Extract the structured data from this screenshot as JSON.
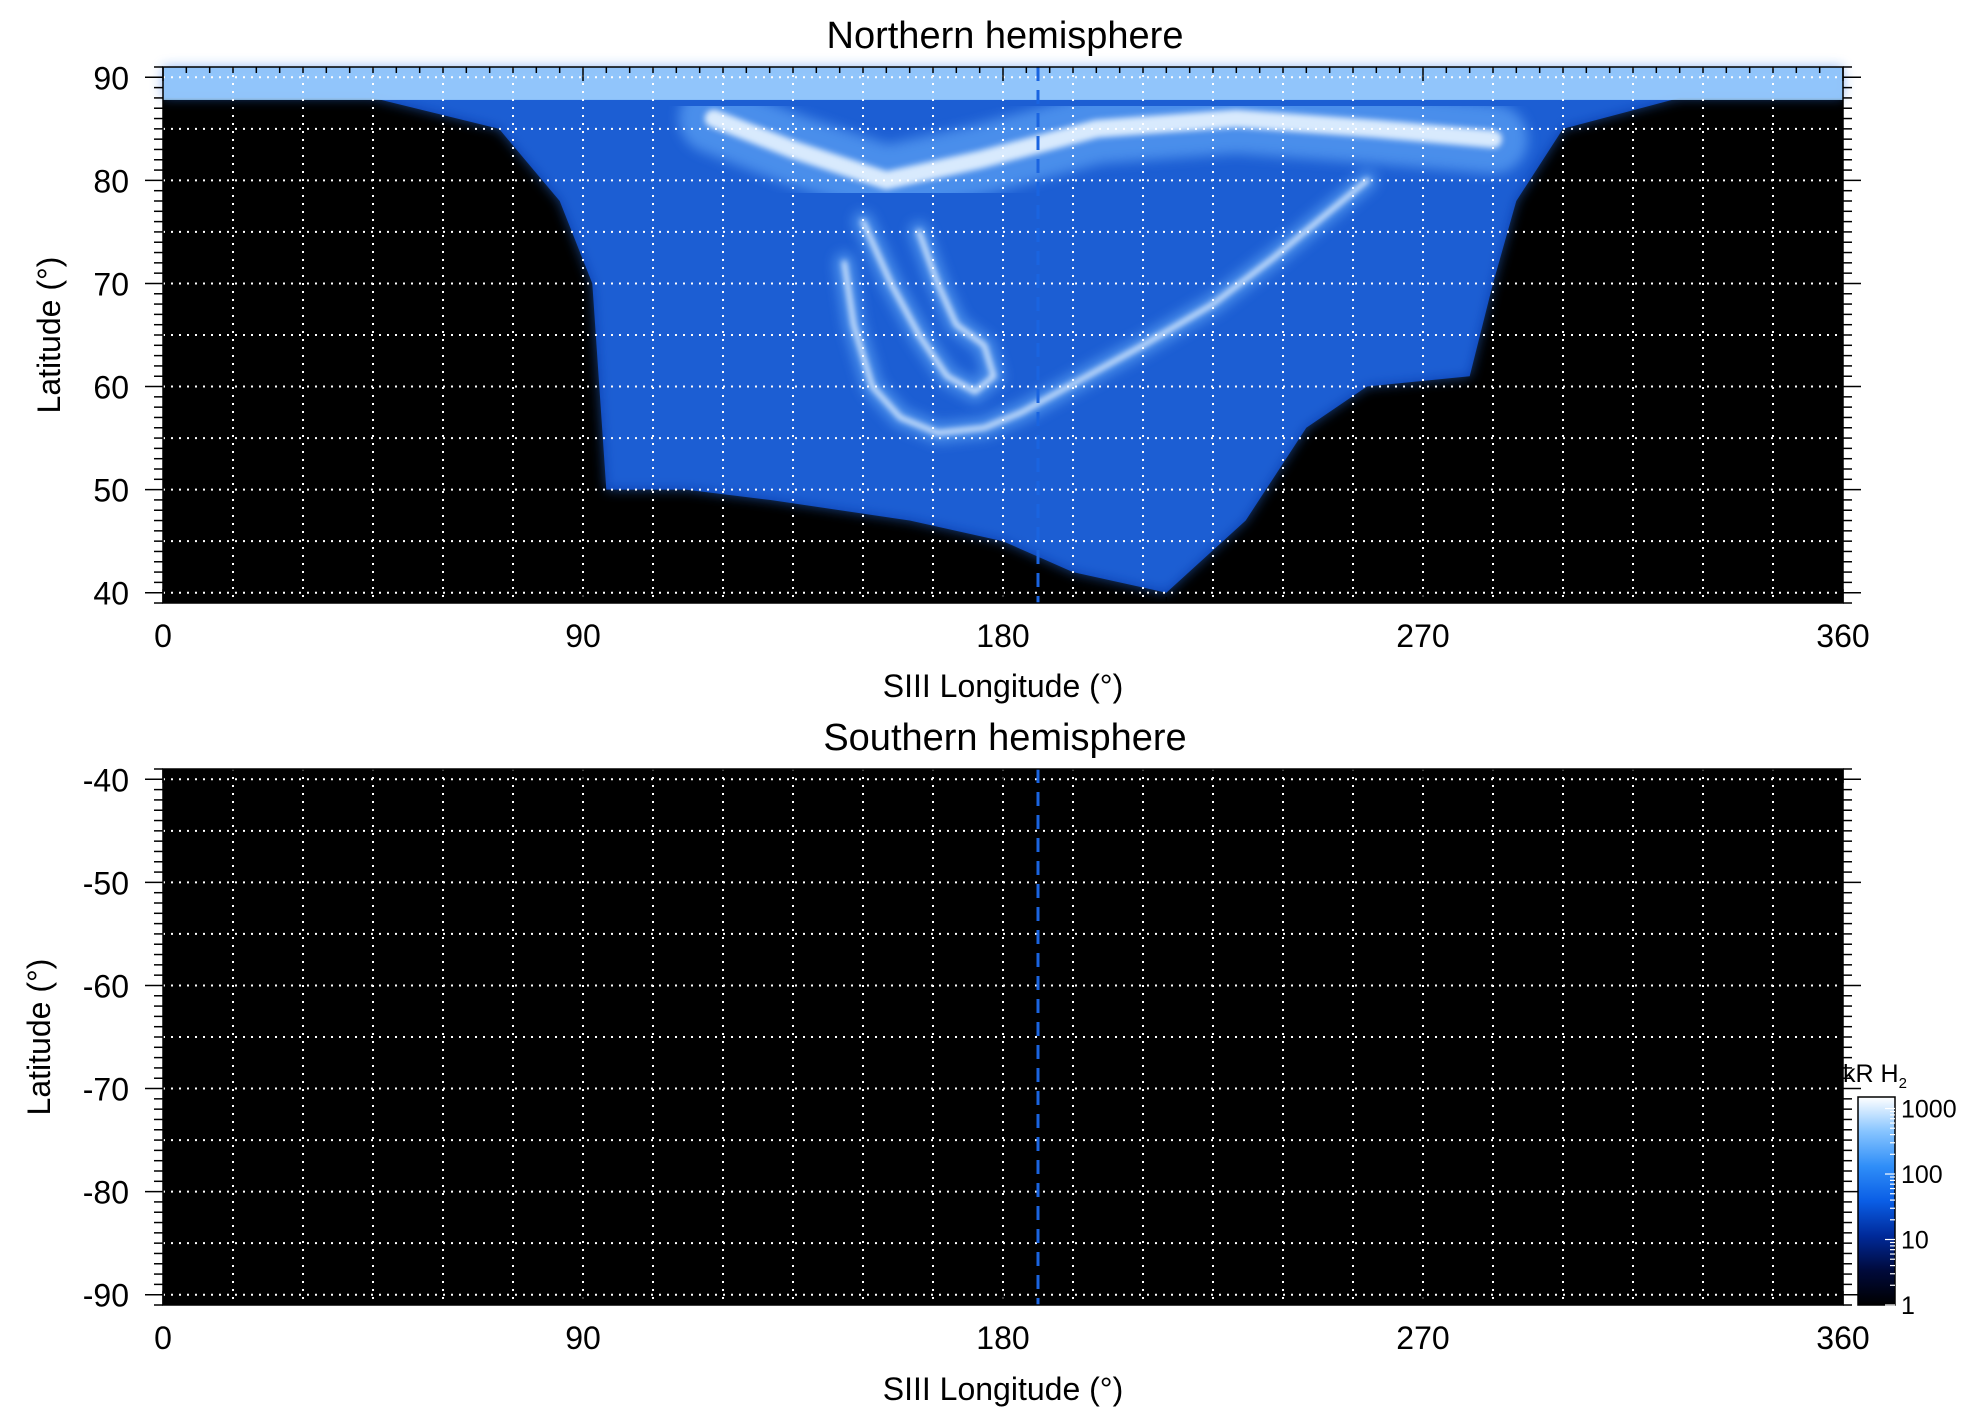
{
  "chart_data": [
    {
      "type": "heatmap",
      "title": "Northern hemisphere",
      "xlabel": "SIII Longitude (°)",
      "ylabel": "Latitude (°)",
      "xlim": [
        0,
        360
      ],
      "ylim": [
        39,
        91
      ],
      "xticks": [
        0,
        90,
        180,
        270,
        360
      ],
      "yticks": [
        40,
        50,
        60,
        70,
        80,
        90
      ],
      "xgrid_step": 15,
      "ygrid_step": 5,
      "grid": true,
      "grid_style": "white dotted",
      "background": "#000000",
      "reference_line_longitude": 187.5,
      "reference_line_color": "#1a64e0",
      "coverage_lower_latitude_by_longitude": [
        [
          0,
          88
        ],
        [
          45,
          88
        ],
        [
          72,
          85
        ],
        [
          85,
          78
        ],
        [
          92,
          70
        ],
        [
          95,
          50
        ],
        [
          112,
          50
        ],
        [
          130,
          49
        ],
        [
          160,
          47
        ],
        [
          180,
          45
        ],
        [
          195,
          42
        ],
        [
          215,
          40
        ],
        [
          232,
          47
        ],
        [
          245,
          56
        ],
        [
          258,
          60
        ],
        [
          280,
          61
        ],
        [
          285,
          70
        ],
        [
          290,
          78
        ],
        [
          300,
          85
        ],
        [
          325,
          88
        ],
        [
          360,
          88
        ]
      ],
      "features": [
        {
          "name": "main auroral oval",
          "points": [
            [
              146,
              72
            ],
            [
              148,
              66
            ],
            [
              152,
              60
            ],
            [
              158,
              57
            ],
            [
              166,
              55.5
            ],
            [
              176,
              56
            ],
            [
              184,
              57.5
            ],
            [
              194,
              60
            ],
            [
              210,
              64
            ],
            [
              225,
              68
            ],
            [
              238,
              72.5
            ],
            [
              250,
              77
            ],
            [
              258,
              80
            ]
          ]
        },
        {
          "name": "inner arc",
          "points": [
            [
              150,
              76
            ],
            [
              156,
              70
            ],
            [
              162,
              65
            ],
            [
              168,
              61
            ],
            [
              174,
              59.5
            ],
            [
              178,
              61
            ],
            [
              176,
              64
            ],
            [
              170,
              66
            ],
            [
              166,
              70
            ],
            [
              162,
              75
            ]
          ]
        },
        {
          "name": "polar emission",
          "points": [
            [
              118,
              86
            ],
            [
              135,
              83
            ],
            [
              155,
              80
            ],
            [
              175,
              82
            ],
            [
              200,
              85
            ],
            [
              230,
              86
            ],
            [
              260,
              85
            ],
            [
              285,
              84
            ]
          ]
        }
      ]
    },
    {
      "type": "heatmap",
      "title": "Southern hemisphere",
      "xlabel": "SIII Longitude (°)",
      "ylabel": "Latitude (°)",
      "xlim": [
        0,
        360
      ],
      "ylim": [
        -91,
        -39
      ],
      "xticks": [
        0,
        90,
        180,
        270,
        360
      ],
      "yticks": [
        -40,
        -50,
        -60,
        -70,
        -80,
        -90
      ],
      "xgrid_step": 15,
      "ygrid_step": 5,
      "grid": true,
      "grid_style": "white dotted",
      "background": "#000000",
      "reference_line_longitude": 187.5,
      "reference_line_color": "#1a64e0",
      "features": []
    }
  ],
  "colorbar": {
    "label": "kR H",
    "label_subscript": "2",
    "scale": "log",
    "range": [
      1,
      1500
    ],
    "ticks": [
      1,
      10,
      100,
      1000
    ],
    "colors": [
      "#000000",
      "#000a3c",
      "#002a9a",
      "#0a5ee6",
      "#2f8ef8",
      "#86c4ff",
      "#ffffff"
    ]
  }
}
